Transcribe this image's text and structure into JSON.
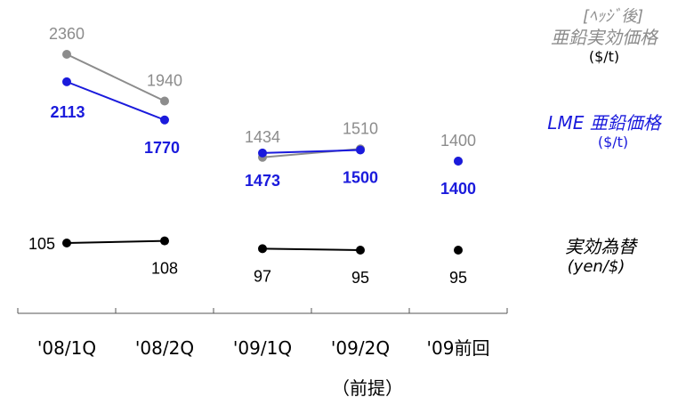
{
  "chart_data": {
    "type": "line",
    "categories": [
      "'08/1Q",
      "'08/2Q",
      "'09/1Q",
      "'09/2Q",
      "'09前回"
    ],
    "category_note": "（前提）",
    "series": [
      {
        "name": "[ﾍｯｼﾞ後] 亜鉛実効価格 ($/t)",
        "values": [
          2360,
          1940,
          1434,
          1510,
          1400
        ],
        "labels": [
          "2360",
          "1940",
          "1434",
          "1510",
          "1400"
        ],
        "connect": [
          [
            0,
            1
          ],
          [
            2,
            3
          ]
        ],
        "color": "#8c8c8c"
      },
      {
        "name": "LME 亜鉛価格 ($/t)",
        "values": [
          2113,
          1770,
          1473,
          1500,
          1400
        ],
        "labels": [
          "2113",
          "1770",
          "1473",
          "1500",
          "1400"
        ],
        "connect": [
          [
            0,
            1
          ],
          [
            2,
            3
          ]
        ],
        "color": "#1a1adc"
      },
      {
        "name": "実効為替 (yen/$)",
        "values": [
          105,
          108,
          97,
          95,
          95
        ],
        "labels": [
          "105",
          "108",
          "97",
          "95",
          "95"
        ],
        "connect": [
          [
            0,
            1
          ],
          [
            2,
            3
          ]
        ],
        "color": "#000000"
      }
    ]
  },
  "legend": {
    "gray": {
      "line1": "[ﾍｯｼﾞ後]",
      "line2": "亜鉛実効価格",
      "line3": "($/t)"
    },
    "blue": {
      "line1": "LME 亜鉛価格",
      "line2": "($/t)"
    },
    "black": {
      "line1": "実効為替",
      "line2": "(yen/$)"
    }
  }
}
